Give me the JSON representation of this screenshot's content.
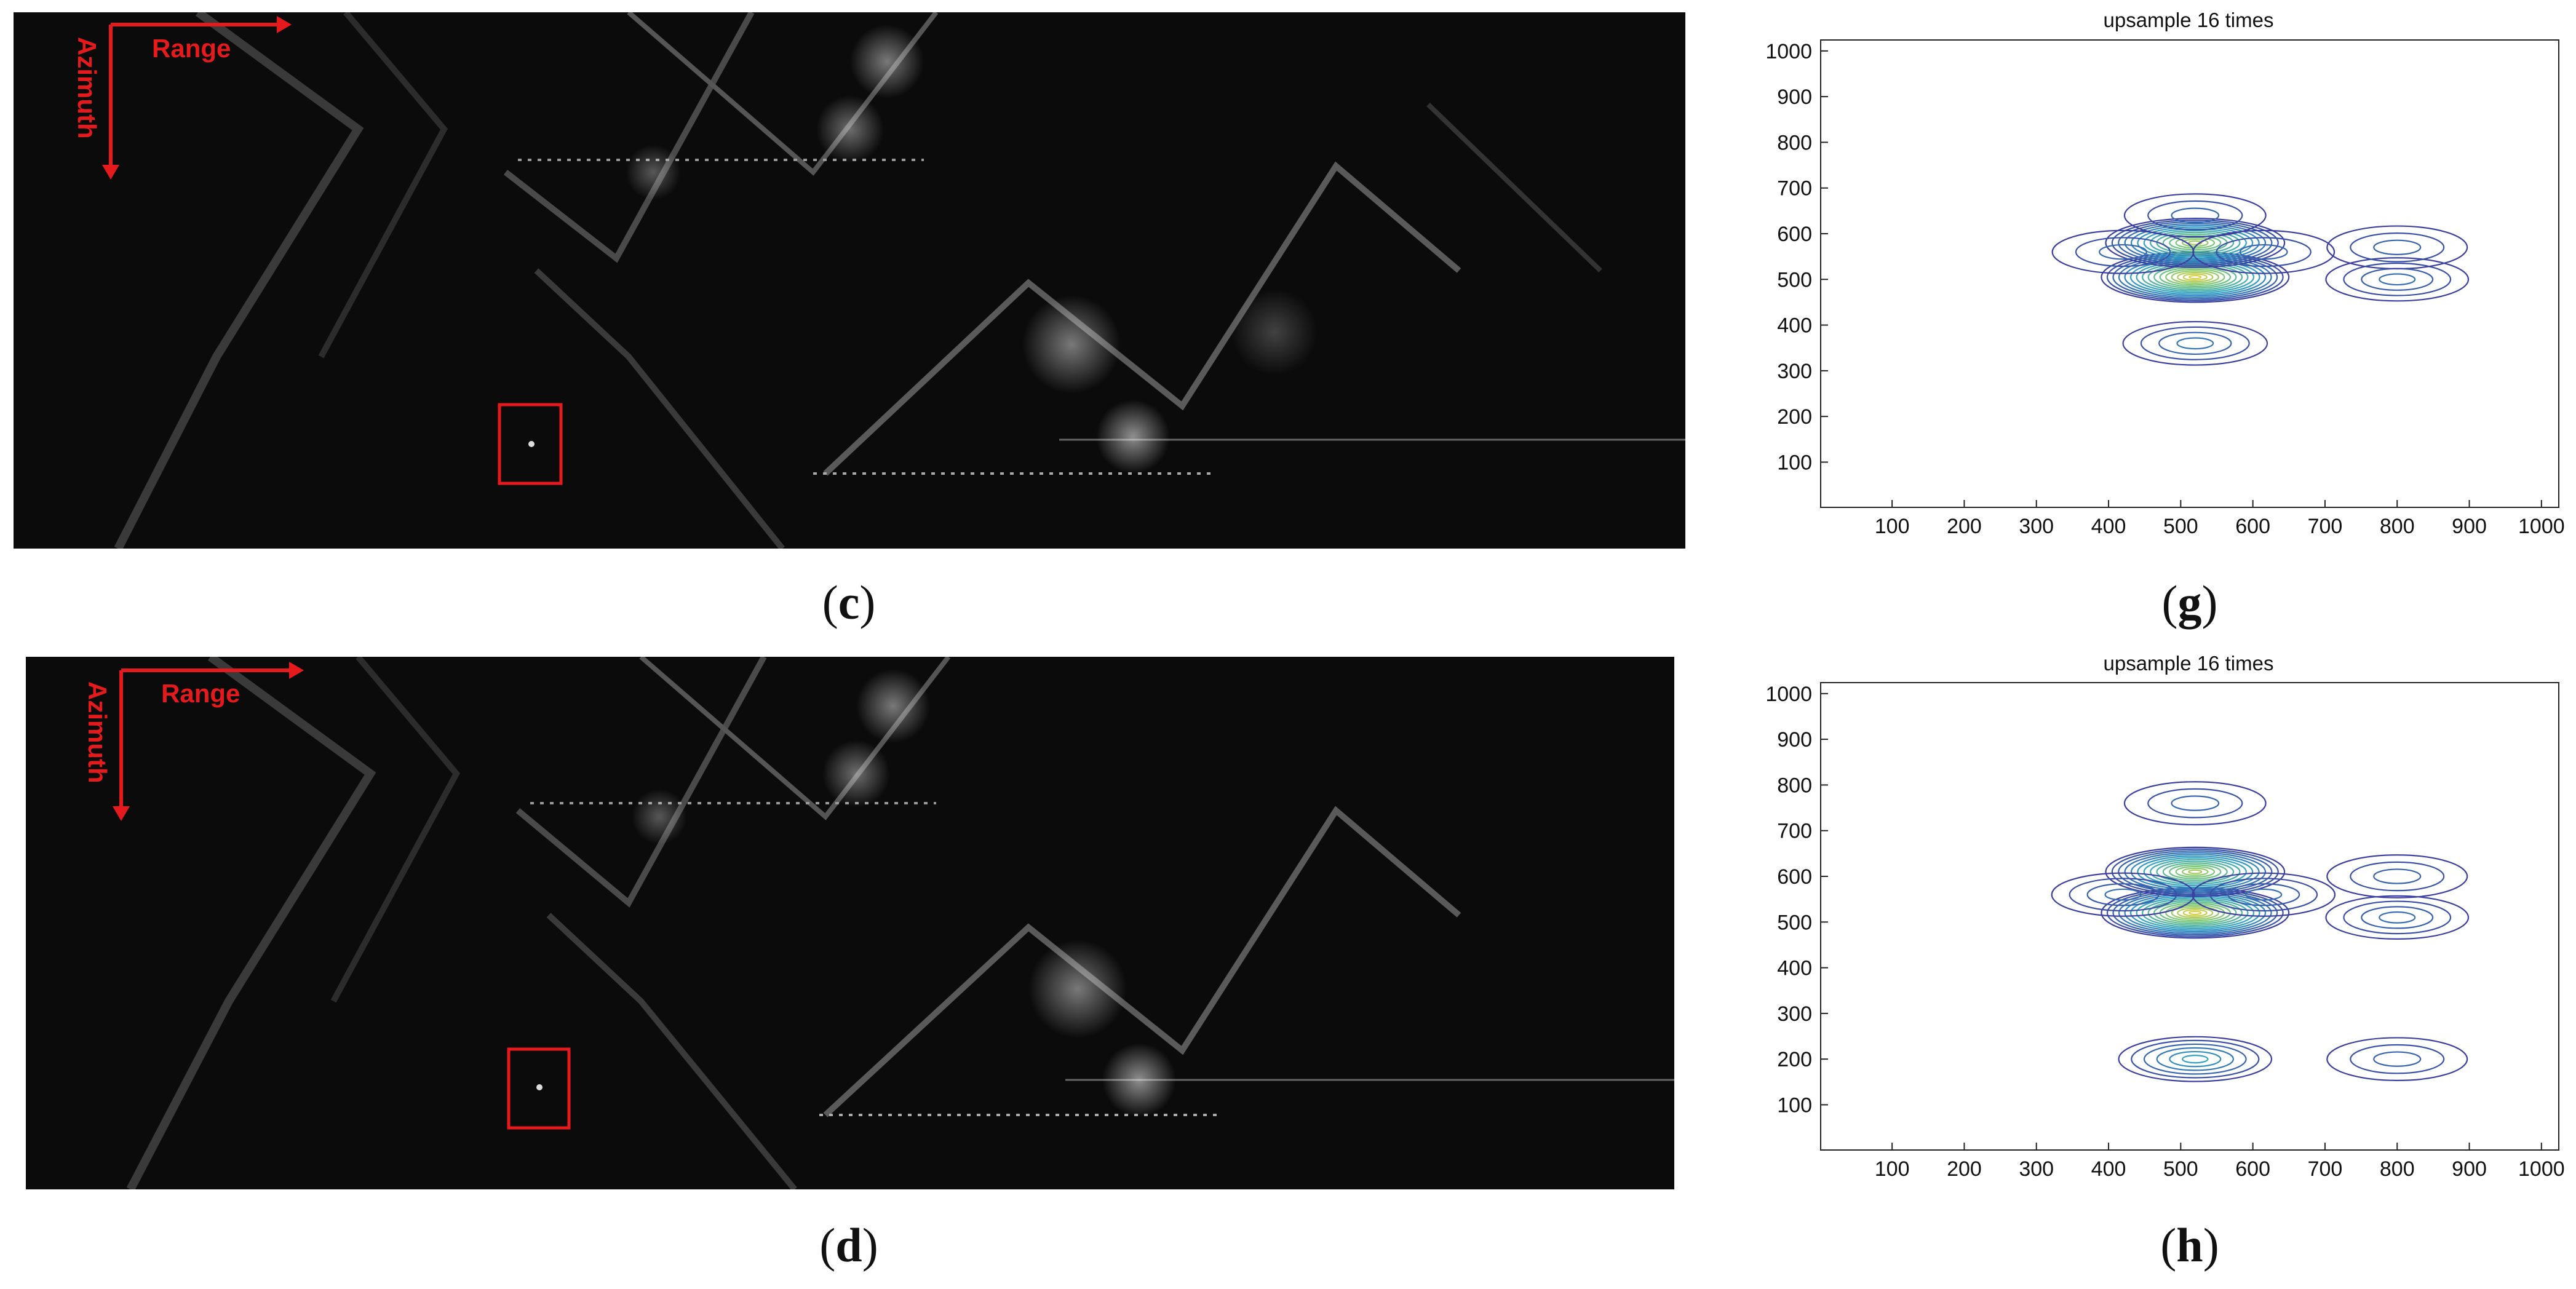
{
  "panels": {
    "c": {
      "caption": "c",
      "arrows": {
        "range": "Range",
        "azimuth": "Azimuth"
      }
    },
    "d": {
      "caption": "d",
      "arrows": {
        "range": "Range",
        "azimuth": "Azimuth"
      }
    },
    "g": {
      "caption": "g"
    },
    "h": {
      "caption": "h"
    }
  },
  "colors": {
    "annotation": "#e41a1c",
    "contour_low": "#3b3fa0",
    "contour_mid": "#2fa0c8",
    "contour_high": "#f5d23a",
    "sar_background": "#0b0b0b"
  },
  "chart_data": [
    {
      "type": "contour",
      "panel": "g",
      "title": "upsample 16 times",
      "xlabel": "",
      "ylabel": "",
      "xlim": [
        1,
        1024
      ],
      "ylim": [
        1,
        1024
      ],
      "xticks": [
        100,
        200,
        300,
        400,
        500,
        600,
        700,
        800,
        900,
        1000
      ],
      "yticks": [
        100,
        200,
        300,
        400,
        500,
        600,
        700,
        800,
        900,
        1000
      ],
      "peaks": [
        {
          "x": 520,
          "y": 505,
          "level": 1.0
        },
        {
          "x": 520,
          "y": 580,
          "level": 0.85
        },
        {
          "x": 520,
          "y": 360,
          "level": 0.25
        },
        {
          "x": 520,
          "y": 640,
          "level": 0.2
        },
        {
          "x": 420,
          "y": 560,
          "level": 0.2
        },
        {
          "x": 615,
          "y": 560,
          "level": 0.2
        },
        {
          "x": 800,
          "y": 500,
          "level": 0.22
        },
        {
          "x": 800,
          "y": 570,
          "level": 0.18
        }
      ]
    },
    {
      "type": "contour",
      "panel": "h",
      "title": "upsample 16 times",
      "xlabel": "",
      "ylabel": "",
      "xlim": [
        1,
        1024
      ],
      "ylim": [
        1,
        1024
      ],
      "xticks": [
        100,
        200,
        300,
        400,
        500,
        600,
        700,
        800,
        900,
        1000
      ],
      "yticks": [
        100,
        200,
        300,
        400,
        500,
        600,
        700,
        800,
        900,
        1000
      ],
      "peaks": [
        {
          "x": 520,
          "y": 520,
          "level": 1.0
        },
        {
          "x": 520,
          "y": 610,
          "level": 0.85
        },
        {
          "x": 520,
          "y": 200,
          "level": 0.4
        },
        {
          "x": 520,
          "y": 760,
          "level": 0.2
        },
        {
          "x": 420,
          "y": 560,
          "level": 0.22
        },
        {
          "x": 615,
          "y": 560,
          "level": 0.22
        },
        {
          "x": 800,
          "y": 510,
          "level": 0.22
        },
        {
          "x": 800,
          "y": 600,
          "level": 0.18
        },
        {
          "x": 800,
          "y": 200,
          "level": 0.18
        }
      ]
    }
  ]
}
